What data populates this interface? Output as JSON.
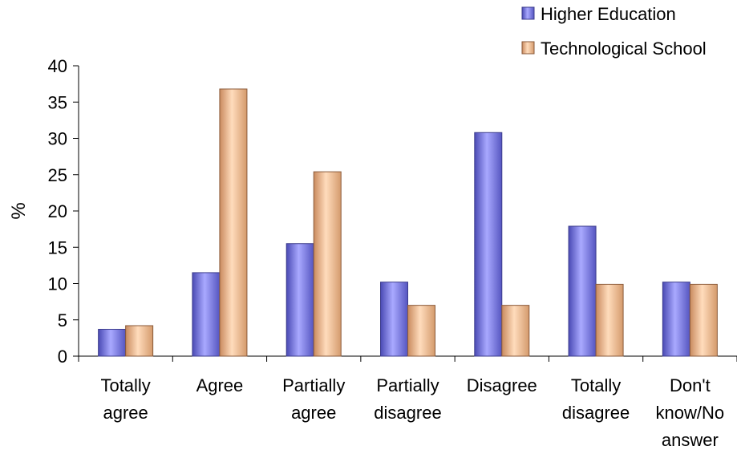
{
  "chart_data": {
    "type": "bar",
    "title": "",
    "xlabel": "",
    "ylabel": "%",
    "ylim": [
      0,
      40
    ],
    "yticks": [
      0,
      5,
      10,
      15,
      20,
      25,
      30,
      35,
      40
    ],
    "grid": false,
    "legend_position": "top-right",
    "categories": [
      [
        "Totally",
        "agree"
      ],
      [
        "Agree"
      ],
      [
        "Partially",
        "agree"
      ],
      [
        "Partially",
        "disagree"
      ],
      [
        "Disagree"
      ],
      [
        "Totally",
        "disagree"
      ],
      [
        "Don't",
        "know/No",
        "answer"
      ]
    ],
    "series": [
      {
        "name": "Higher Education",
        "color": "#8f8ff0",
        "edge": "#3c3c8c",
        "values": [
          3.7,
          11.5,
          15.5,
          10.2,
          30.8,
          17.9,
          10.2
        ]
      },
      {
        "name": "Technological School",
        "color": "#f5c39b",
        "edge": "#8a5a3a",
        "values": [
          4.2,
          36.8,
          25.4,
          7.0,
          7.0,
          9.9,
          9.9
        ]
      }
    ]
  }
}
